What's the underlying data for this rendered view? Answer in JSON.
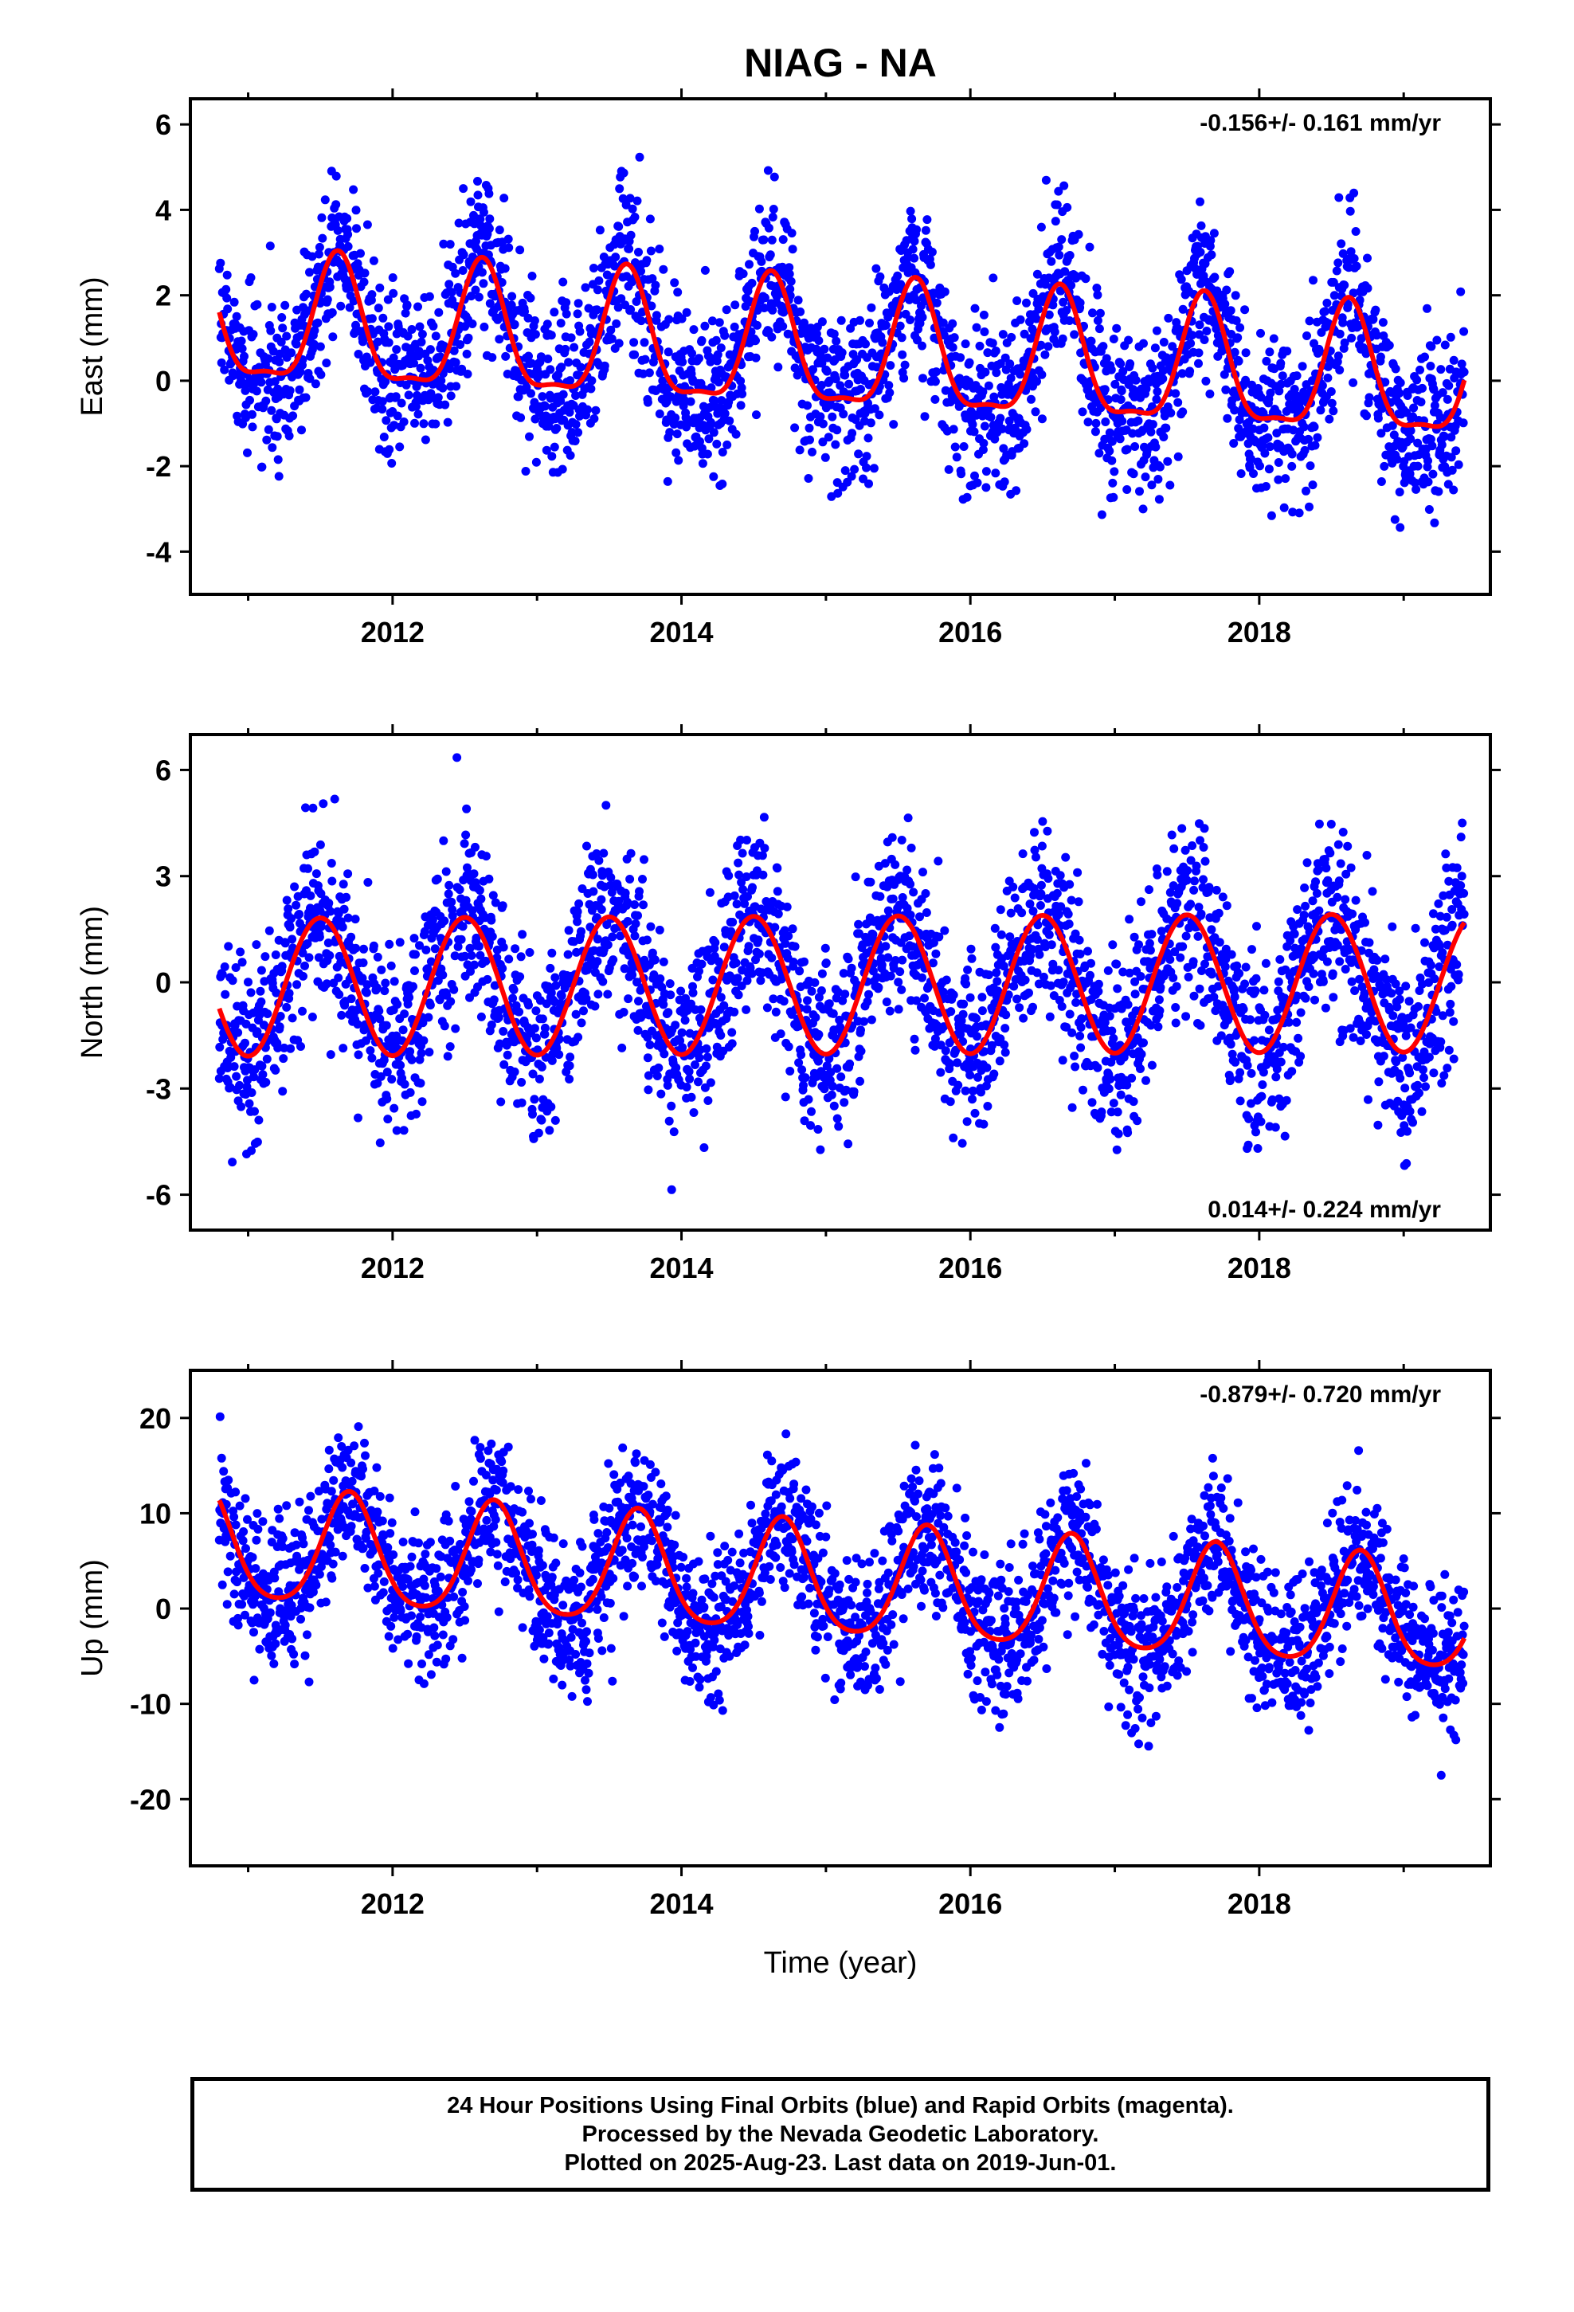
{
  "title": "NIAG - NA",
  "colors": {
    "points": "#0000ff",
    "fit": "#ff0000",
    "axes": "#000000"
  },
  "chart_data": [
    {
      "type": "scatter",
      "id": "east",
      "ylabel": "East (mm)",
      "xlabel": "",
      "xlim": [
        2010.6,
        2019.6
      ],
      "ylim": [
        -5,
        6.6
      ],
      "yticks": [
        -4,
        -2,
        0,
        2,
        4,
        6
      ],
      "xticks": [
        2012,
        2014,
        2016,
        2018
      ],
      "rate_label": "-0.156+/- 0.161 mm/yr",
      "rate_position": "top-right",
      "data_start": 2010.8,
      "data_end": 2019.42,
      "fit": {
        "offset": 0.62,
        "trend": -0.156,
        "annual_amp": 1.45,
        "annual_phase": 2011.62,
        "semiannual_amp": 0.45,
        "semiannual_phase": 2011.62
      },
      "scatter_sigma": 1.0,
      "seed": 7
    },
    {
      "type": "scatter",
      "id": "north",
      "ylabel": "North (mm)",
      "xlabel": "",
      "xlim": [
        2010.6,
        2019.6
      ],
      "ylim": [
        -7,
        7
      ],
      "yticks": [
        -6,
        -3,
        0,
        3,
        6
      ],
      "xticks": [
        2012,
        2014,
        2016,
        2018
      ],
      "rate_label": "0.014+/- 0.224 mm/yr",
      "rate_position": "bottom-right",
      "data_start": 2010.8,
      "data_end": 2019.42,
      "fit": {
        "offset": -0.08,
        "trend": 0.014,
        "annual_amp": 1.95,
        "annual_phase": 2011.5,
        "semiannual_amp": 0.0,
        "semiannual_phase": 2011.5
      },
      "scatter_sigma": 1.3,
      "seed": 21
    },
    {
      "type": "scatter",
      "id": "up",
      "ylabel": "Up (mm)",
      "xlabel": "Time (year)",
      "xlim": [
        2010.6,
        2019.6
      ],
      "ylim": [
        -27,
        25
      ],
      "yticks": [
        -20,
        -10,
        0,
        10,
        20
      ],
      "xticks": [
        2012,
        2014,
        2016,
        2018
      ],
      "rate_label": "-0.879+/- 0.720 mm/yr",
      "rate_position": "top-right",
      "data_start": 2010.8,
      "data_end": 2019.42,
      "fit": {
        "offset": 2.7,
        "trend": -0.879,
        "annual_amp": 5.8,
        "annual_phase": 2011.7,
        "semiannual_amp": 0.9,
        "semiannual_phase": 2011.7
      },
      "scatter_sigma": 3.8,
      "seed": 99
    }
  ],
  "footer": {
    "line1": "24 Hour Positions Using Final Orbits (blue) and Rapid Orbits (magenta).",
    "line2": "Processed by the Nevada Geodetic Laboratory.",
    "line3": "Plotted on 2025-Aug-23. Last data on 2019-Jun-01."
  }
}
